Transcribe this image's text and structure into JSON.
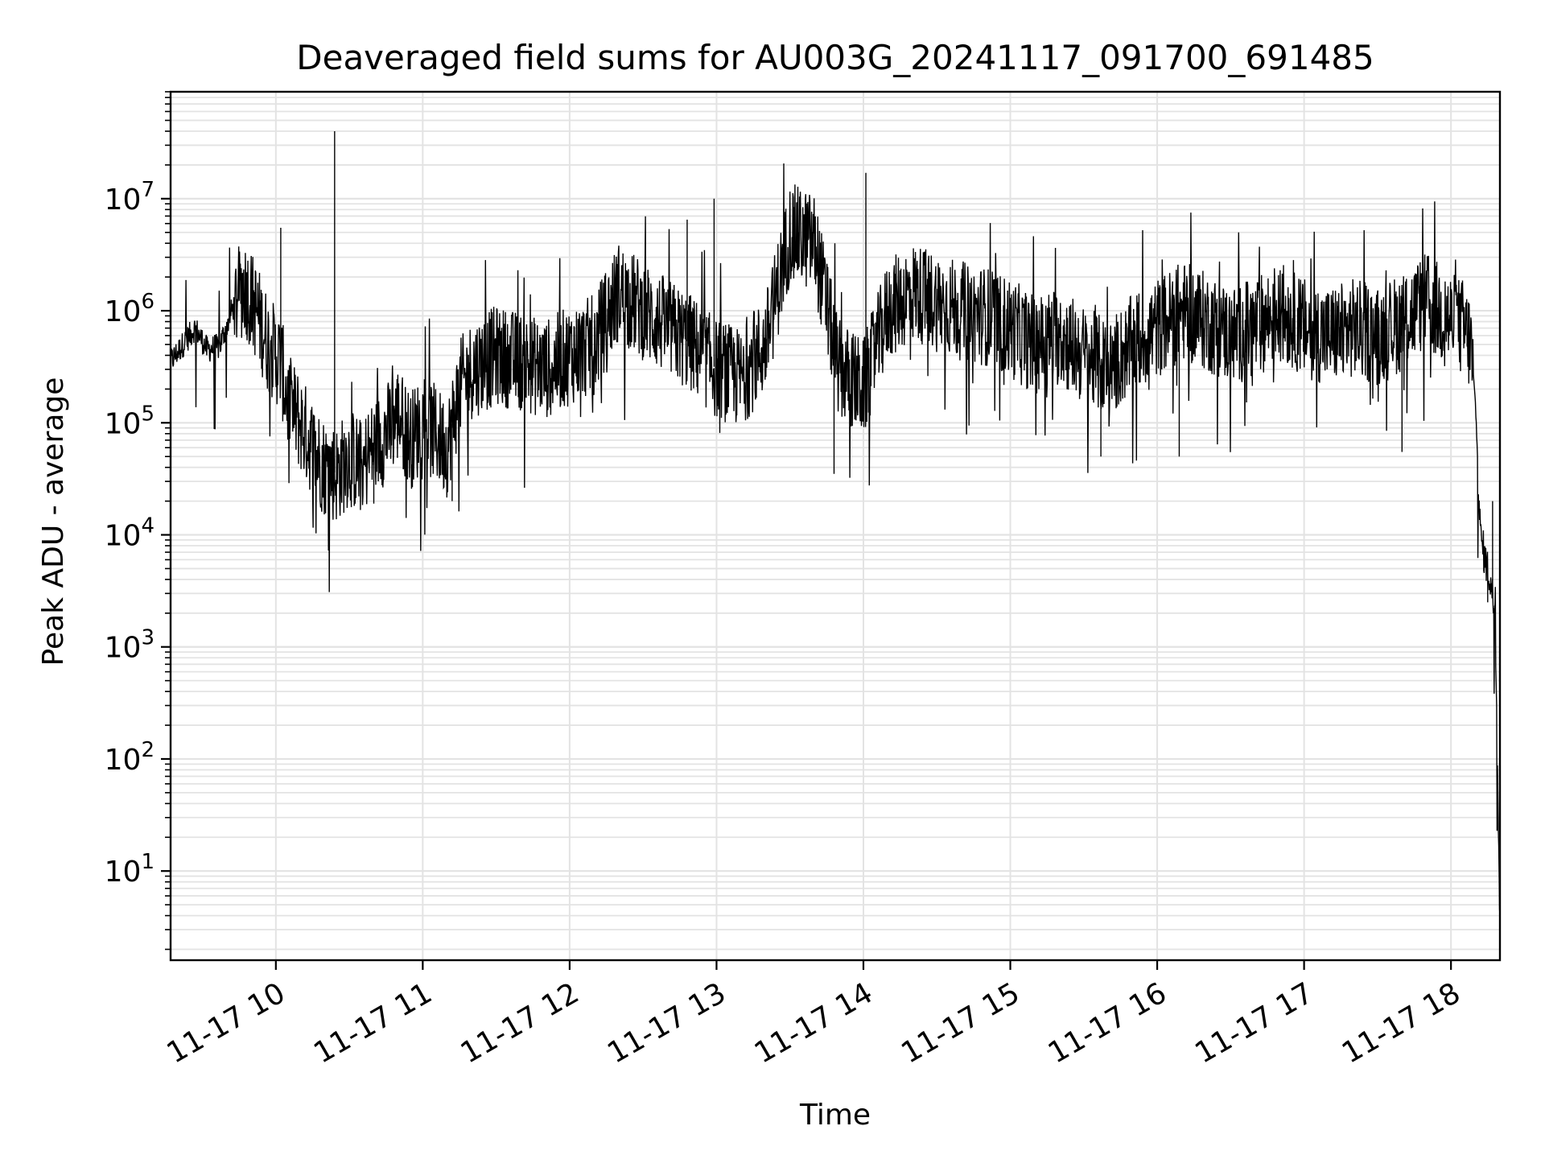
{
  "chart_data": {
    "type": "line",
    "title": "Deaveraged field sums for AU003G_20241117_091700_691485",
    "xlabel": "Time",
    "ylabel": "Peak ADU - average",
    "yscale": "log",
    "ylim": [
      1.6,
      90000000
    ],
    "xlim": [
      "2024-11-17 09:17",
      "2024-11-17 18:20"
    ],
    "grid": true,
    "line_color": "#000000",
    "x_ticks": [
      "11-17 10",
      "11-17 11",
      "11-17 12",
      "11-17 13",
      "11-17 14",
      "11-17 15",
      "11-17 16",
      "11-17 17",
      "11-17 18"
    ],
    "y_ticks": [
      {
        "base": "10",
        "exp": "1"
      },
      {
        "base": "10",
        "exp": "2"
      },
      {
        "base": "10",
        "exp": "3"
      },
      {
        "base": "10",
        "exp": "4"
      },
      {
        "base": "10",
        "exp": "5"
      },
      {
        "base": "10",
        "exp": "6"
      },
      {
        "base": "10",
        "exp": "7"
      }
    ],
    "series": [
      {
        "points": [
          [
            "2024-11-17 09:17",
            350000
          ],
          [
            "2024-11-17 09:22",
            500000
          ],
          [
            "2024-11-17 09:27",
            700000
          ],
          [
            "2024-11-17 09:32",
            450000
          ],
          [
            "2024-11-17 09:37",
            480000
          ],
          [
            "2024-11-17 09:42",
            1000000
          ],
          [
            "2024-11-17 09:47",
            1700000
          ],
          [
            "2024-11-17 09:52",
            1000000
          ],
          [
            "2024-11-17 09:57",
            500000
          ],
          [
            "2024-11-17 10:02",
            350000
          ],
          [
            "2024-11-17 10:05",
            150000
          ],
          [
            "2024-11-17 10:10",
            100000
          ],
          [
            "2024-11-17 10:15",
            60000
          ],
          [
            "2024-11-17 10:20",
            40000
          ],
          [
            "2024-11-17 10:25",
            35000
          ],
          [
            "2024-11-17 10:30",
            50000
          ],
          [
            "2024-11-17 10:35",
            40000
          ],
          [
            "2024-11-17 10:40",
            60000
          ],
          [
            "2024-11-17 10:45",
            80000
          ],
          [
            "2024-11-17 10:50",
            120000
          ],
          [
            "2024-11-17 10:55",
            70000
          ],
          [
            "2024-11-17 11:00",
            100000
          ],
          [
            "2024-11-17 11:05",
            80000
          ],
          [
            "2024-11-17 11:10",
            60000
          ],
          [
            "2024-11-17 11:15",
            200000
          ],
          [
            "2024-11-17 11:20",
            300000
          ],
          [
            "2024-11-17 11:30",
            400000
          ],
          [
            "2024-11-17 11:40",
            350000
          ],
          [
            "2024-11-17 11:50",
            300000
          ],
          [
            "2024-11-17 12:00",
            400000
          ],
          [
            "2024-11-17 12:10",
            500000
          ],
          [
            "2024-11-17 12:20",
            1500000
          ],
          [
            "2024-11-17 12:30",
            1000000
          ],
          [
            "2024-11-17 12:40",
            700000
          ],
          [
            "2024-11-17 12:50",
            500000
          ],
          [
            "2024-11-17 13:00",
            300000
          ],
          [
            "2024-11-17 13:10",
            250000
          ],
          [
            "2024-11-17 13:20",
            500000
          ],
          [
            "2024-11-17 13:30",
            5000000
          ],
          [
            "2024-11-17 13:40",
            4000000
          ],
          [
            "2024-11-17 13:50",
            300000
          ],
          [
            "2024-11-17 14:00",
            200000
          ],
          [
            "2024-11-17 14:10",
            1000000
          ],
          [
            "2024-11-17 14:20",
            1500000
          ],
          [
            "2024-11-17 14:30",
            1200000
          ],
          [
            "2024-11-17 14:40",
            1000000
          ],
          [
            "2024-11-17 14:50",
            900000
          ],
          [
            "2024-11-17 15:00",
            700000
          ],
          [
            "2024-11-17 15:10",
            500000
          ],
          [
            "2024-11-17 15:20",
            600000
          ],
          [
            "2024-11-17 15:30",
            400000
          ],
          [
            "2024-11-17 15:40",
            300000
          ],
          [
            "2024-11-17 15:50",
            500000
          ],
          [
            "2024-11-17 16:00",
            700000
          ],
          [
            "2024-11-17 16:10",
            1000000
          ],
          [
            "2024-11-17 16:20",
            800000
          ],
          [
            "2024-11-17 16:30",
            600000
          ],
          [
            "2024-11-17 16:40",
            700000
          ],
          [
            "2024-11-17 16:50",
            1000000
          ],
          [
            "2024-11-17 17:00",
            700000
          ],
          [
            "2024-11-17 17:10",
            600000
          ],
          [
            "2024-11-17 17:20",
            700000
          ],
          [
            "2024-11-17 17:30",
            600000
          ],
          [
            "2024-11-17 17:40",
            800000
          ],
          [
            "2024-11-17 17:50",
            1200000
          ],
          [
            "2024-11-17 18:00",
            800000
          ],
          [
            "2024-11-17 18:05",
            700000
          ],
          [
            "2024-11-17 18:08",
            500000
          ],
          [
            "2024-11-17 18:10",
            150000
          ],
          [
            "2024-11-17 18:12",
            10000
          ],
          [
            "2024-11-17 18:14",
            6000
          ],
          [
            "2024-11-17 18:16",
            4000
          ],
          [
            "2024-11-17 18:18",
            2000
          ],
          [
            "2024-11-17 18:20",
            4
          ]
        ],
        "spikes": [
          [
            "2024-11-17 10:02",
            5500000
          ],
          [
            "2024-11-17 10:24",
            40000000
          ],
          [
            "2024-11-17 12:48",
            6500000
          ],
          [
            "2024-11-17 12:59",
            10000000
          ],
          [
            "2024-11-17 14:01",
            17000000
          ],
          [
            "2024-11-17 11:12",
            20000
          ],
          [
            "2024-11-17 10:40",
            19000
          ],
          [
            "2024-11-17 13:48",
            35000
          ],
          [
            "2024-11-17 15:37",
            50000
          ],
          [
            "2024-11-17 16:09",
            50000
          ],
          [
            "2024-11-17 17:40",
            55000
          ],
          [
            "2024-11-17 18:15",
            2500
          ],
          [
            "2024-11-17 18:17",
            20000
          ]
        ]
      }
    ]
  }
}
